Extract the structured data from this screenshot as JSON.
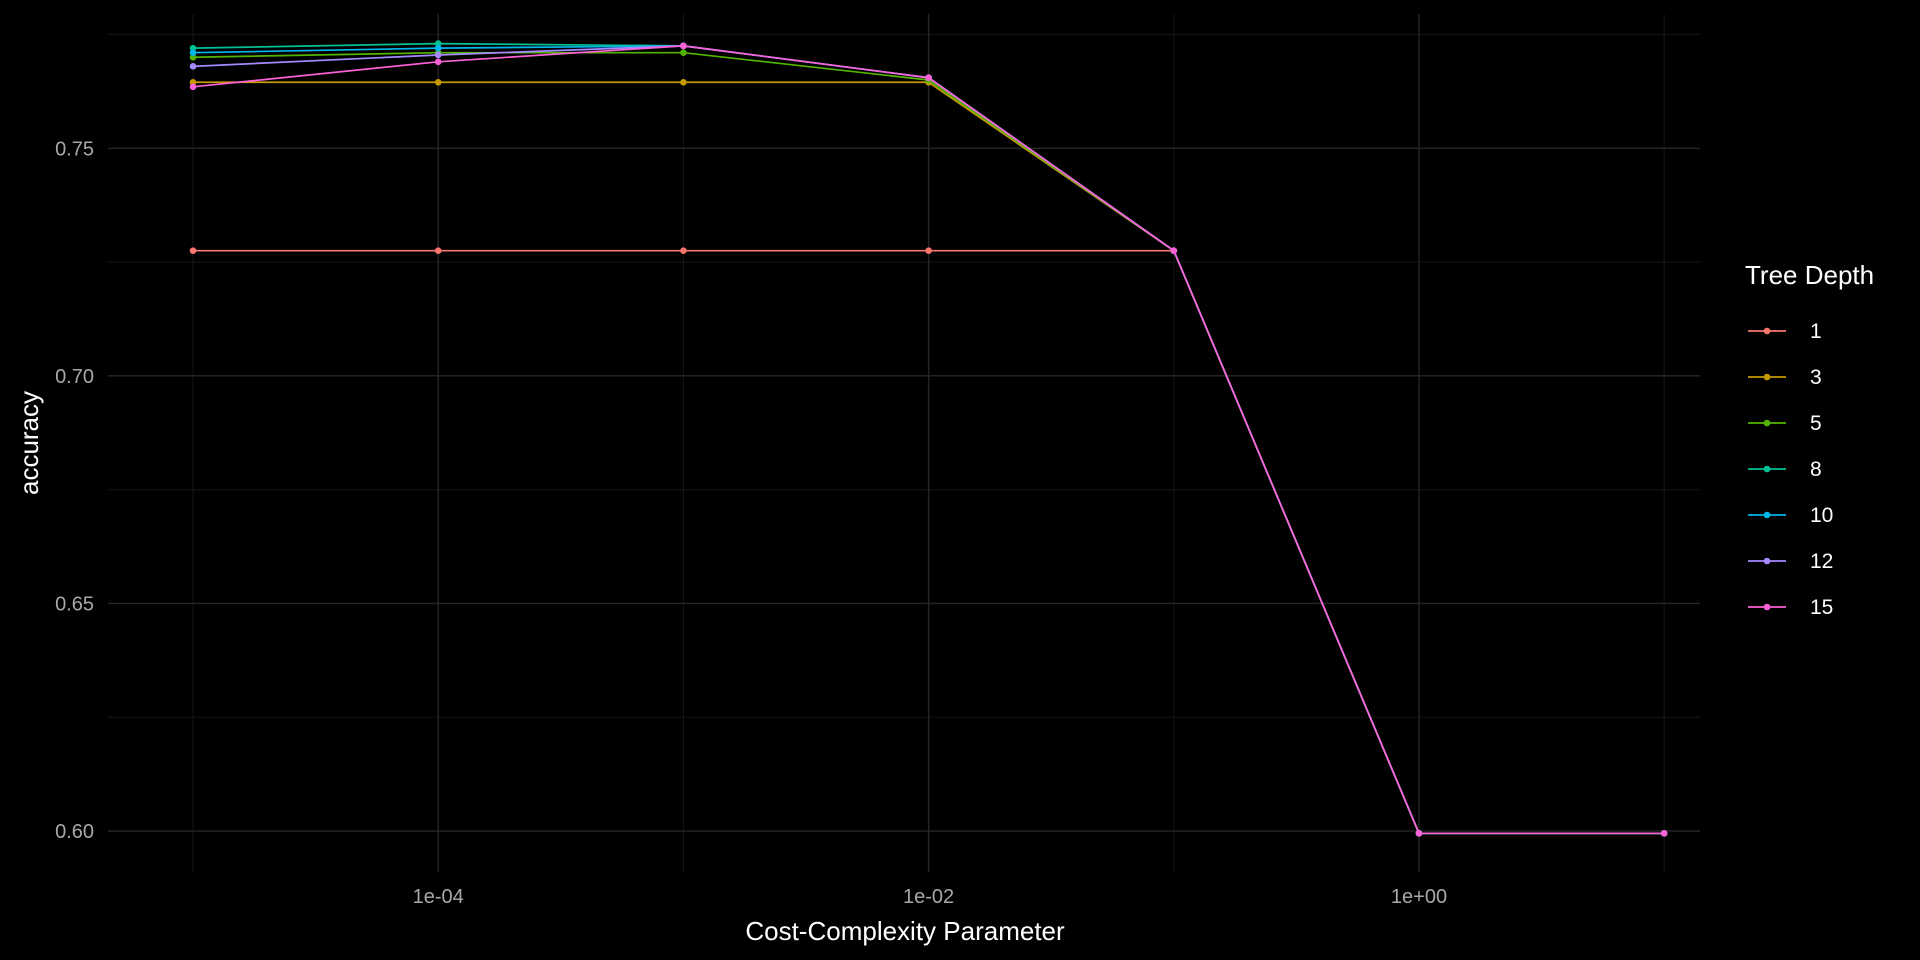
{
  "chart_data": {
    "type": "line",
    "title": "",
    "xlabel": "Cost-Complexity Parameter",
    "ylabel": "accuracy",
    "x_scale": "log10",
    "x_ticks": [
      {
        "value": 0.0001,
        "label": "1e-04"
      },
      {
        "value": 0.01,
        "label": "1e-02"
      },
      {
        "value": 1,
        "label": "1e+00"
      }
    ],
    "y_ticks": [
      {
        "value": 0.6,
        "label": "0.60"
      },
      {
        "value": 0.65,
        "label": "0.65"
      },
      {
        "value": 0.7,
        "label": "0.70"
      },
      {
        "value": 0.75,
        "label": "0.75"
      }
    ],
    "xlim": [
      4.5e-06,
      14
    ],
    "ylim": [
      0.591,
      0.7795
    ],
    "grid": true,
    "legend": {
      "title": "Tree Depth",
      "position": "right"
    },
    "x": [
      1e-05,
      0.0001,
      0.001,
      0.01,
      0.1,
      1,
      10
    ],
    "series": [
      {
        "name": "1",
        "color": "#F8766D",
        "values": [
          0.7275,
          0.7275,
          0.7275,
          0.7275,
          0.7275,
          0.5995,
          0.5995
        ]
      },
      {
        "name": "3",
        "color": "#C49A00",
        "values": [
          0.7645,
          0.7645,
          0.7645,
          0.7645,
          0.7275,
          0.5995,
          0.5995
        ]
      },
      {
        "name": "5",
        "color": "#53B400",
        "values": [
          0.77,
          0.771,
          0.771,
          0.765,
          0.7275,
          0.5995,
          0.5995
        ]
      },
      {
        "name": "8",
        "color": "#00C094",
        "values": [
          0.772,
          0.773,
          0.7725,
          0.7655,
          0.7275,
          0.5995,
          0.5995
        ]
      },
      {
        "name": "10",
        "color": "#00B6EB",
        "values": [
          0.771,
          0.772,
          0.7725,
          0.7655,
          0.7275,
          0.5995,
          0.5995
        ]
      },
      {
        "name": "12",
        "color": "#A58AFF",
        "values": [
          0.768,
          0.7705,
          0.7725,
          0.7655,
          0.7275,
          0.5995,
          0.5995
        ]
      },
      {
        "name": "15",
        "color": "#FB61D7",
        "values": [
          0.7635,
          0.769,
          0.7725,
          0.7655,
          0.7275,
          0.5995,
          0.5995
        ]
      }
    ]
  }
}
